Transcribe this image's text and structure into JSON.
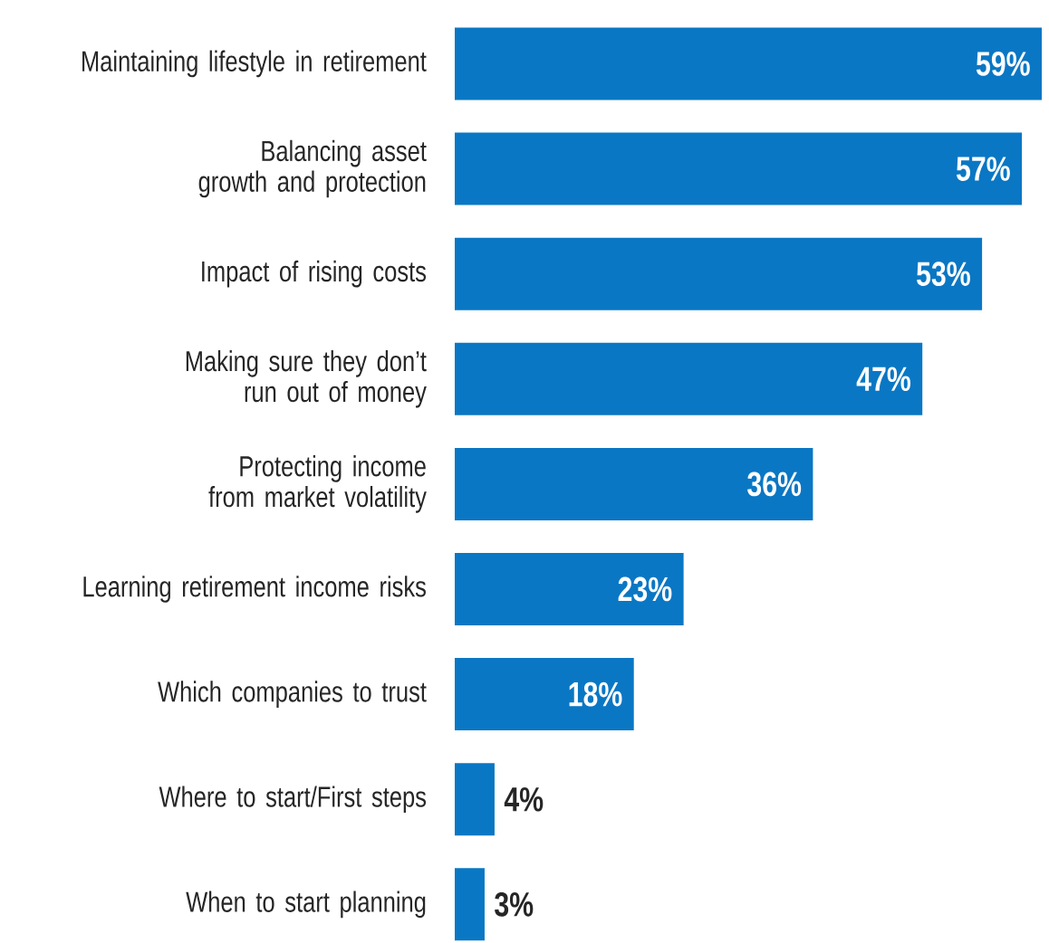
{
  "chart_data": {
    "type": "bar",
    "orientation": "horizontal",
    "color": "#0a77c4",
    "categories": [
      "Maintaining lifestyle in retirement",
      "Balancing asset growth and protection",
      "Impact of rising costs",
      "Making sure they don’t run out of money",
      "Protecting income from market volatility",
      "Learning retirement income risks",
      "Which companies to trust",
      "Where to start/First steps",
      "When to start planning"
    ],
    "values": [
      59,
      57,
      53,
      47,
      36,
      23,
      18,
      4,
      3
    ],
    "value_labels": [
      "59%",
      "57%",
      "53%",
      "47%",
      "36%",
      "23%",
      "18%",
      "4%",
      "3%"
    ]
  }
}
